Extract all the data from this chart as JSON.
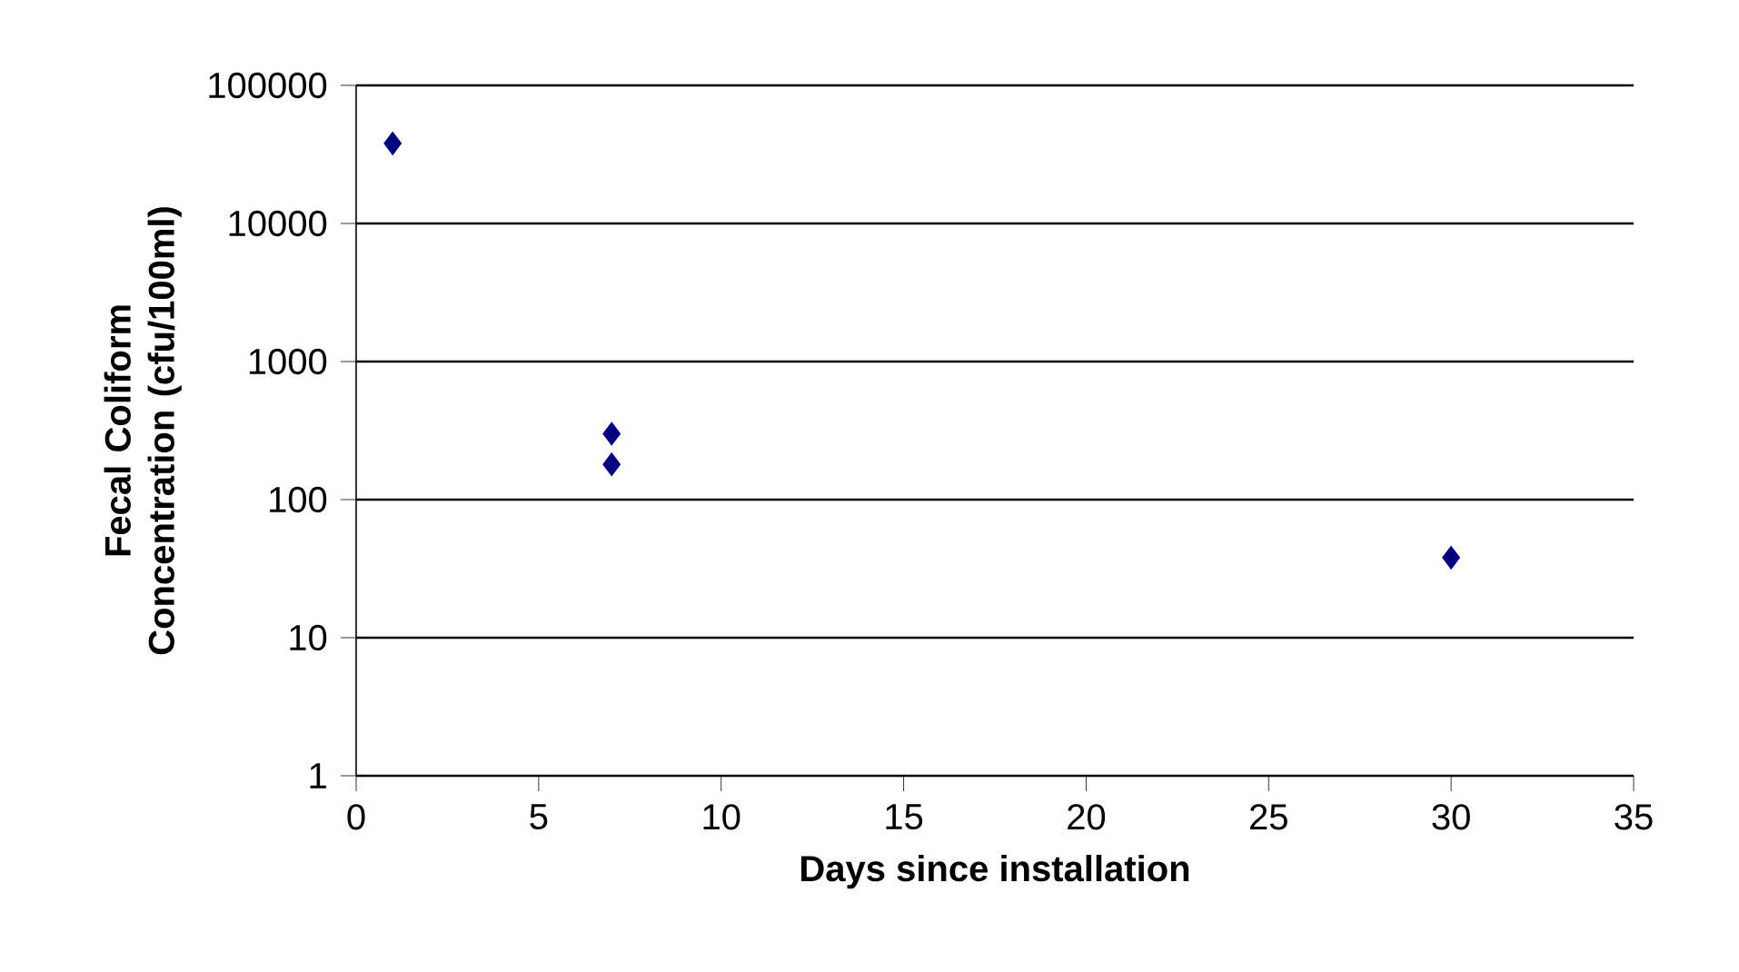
{
  "chart_data": {
    "type": "scatter",
    "xlabel": "Days since installation",
    "ylabel": "Fecal Coliform Concentration (cfu/100ml)",
    "log": "y",
    "marker": "diamond",
    "grid": "y",
    "x": [
      1,
      7,
      7,
      30
    ],
    "series": [
      {
        "color": "#000080",
        "values": [
          38000,
          300,
          180,
          38
        ]
      }
    ],
    "xlim": [
      0,
      35
    ],
    "xticks": [
      0,
      5,
      10,
      15,
      20,
      25,
      30,
      35
    ],
    "ylim": [
      1,
      100000
    ],
    "yticks": [
      1,
      10,
      100,
      1000,
      10000,
      100000
    ]
  }
}
